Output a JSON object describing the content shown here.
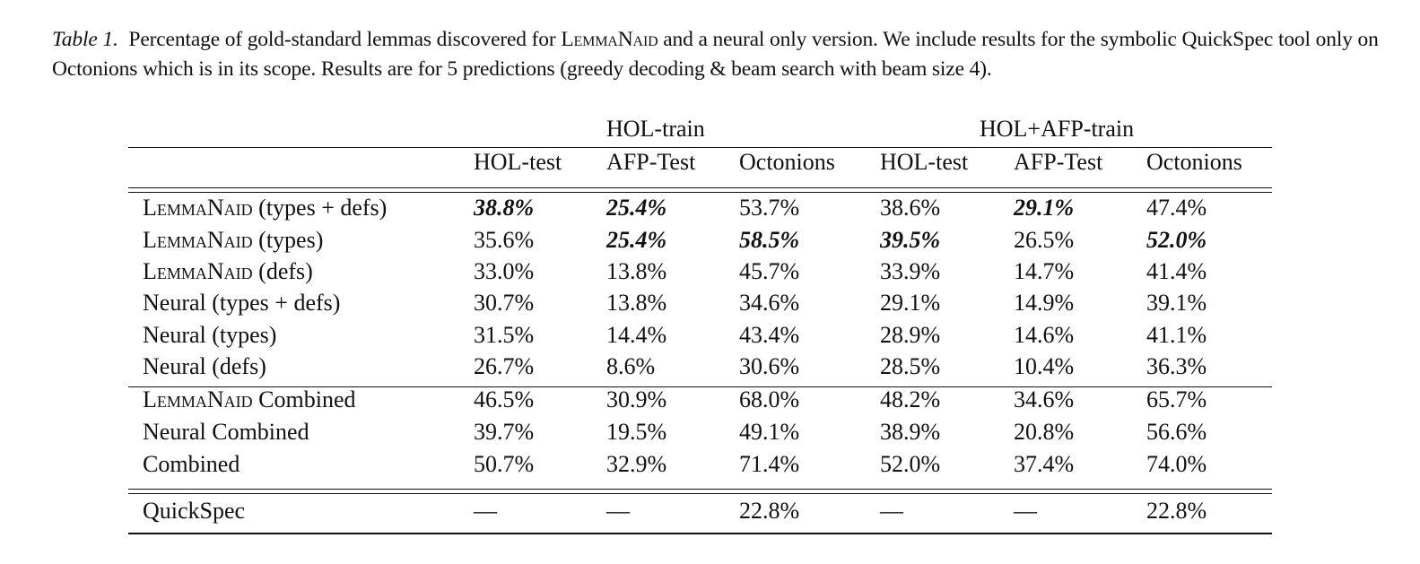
{
  "caption": {
    "label": "Table 1.",
    "text_before": "Percentage of gold-standard lemmas discovered for",
    "system_name": "LemmaNaid",
    "text_after": "and a neural only version. We include results for the symbolic QuickSpec tool only on Octonions which is in its scope. Results are for 5 predictions (greedy decoding & beam search with beam size 4)."
  },
  "table": {
    "groups": [
      {
        "label": "HOL-train"
      },
      {
        "label": "HOL+AFP-train"
      }
    ],
    "columns": [
      "HOL-test",
      "AFP-Test",
      "Octonions",
      "HOL-test",
      "AFP-Test",
      "Octonions"
    ],
    "section1": [
      {
        "name_sc": "LemmaNaid",
        "name_rest": " (types + defs)",
        "values": [
          "38.8%",
          "25.4%",
          "53.7%",
          "38.6%",
          "29.1%",
          "47.4%"
        ],
        "bold": [
          true,
          true,
          false,
          false,
          true,
          false
        ]
      },
      {
        "name_sc": "LemmaNaid",
        "name_rest": " (types)",
        "values": [
          "35.6%",
          "25.4%",
          "58.5%",
          "39.5%",
          "26.5%",
          "52.0%"
        ],
        "bold": [
          false,
          true,
          true,
          true,
          false,
          true
        ]
      },
      {
        "name_sc": "LemmaNaid",
        "name_rest": " (defs)",
        "values": [
          "33.0%",
          "13.8%",
          "45.7%",
          "33.9%",
          "14.7%",
          "41.4%"
        ],
        "bold": [
          false,
          false,
          false,
          false,
          false,
          false
        ]
      },
      {
        "name_sc": "",
        "name_rest": "Neural (types + defs)",
        "values": [
          "30.7%",
          "13.8%",
          "34.6%",
          "29.1%",
          "14.9%",
          "39.1%"
        ],
        "bold": [
          false,
          false,
          false,
          false,
          false,
          false
        ]
      },
      {
        "name_sc": "",
        "name_rest": "Neural (types)",
        "values": [
          "31.5%",
          "14.4%",
          "43.4%",
          "28.9%",
          "14.6%",
          "41.1%"
        ],
        "bold": [
          false,
          false,
          false,
          false,
          false,
          false
        ]
      },
      {
        "name_sc": "",
        "name_rest": "Neural (defs)",
        "values": [
          "26.7%",
          "8.6%",
          "30.6%",
          "28.5%",
          "10.4%",
          "36.3%"
        ],
        "bold": [
          false,
          false,
          false,
          false,
          false,
          false
        ]
      }
    ],
    "section2": [
      {
        "name_sc": "LemmaNaid",
        "name_rest": " Combined",
        "values": [
          "46.5%",
          "30.9%",
          "68.0%",
          "48.2%",
          "34.6%",
          "65.7%"
        ],
        "bold": [
          false,
          false,
          false,
          false,
          false,
          false
        ]
      },
      {
        "name_sc": "",
        "name_rest": "Neural Combined",
        "values": [
          "39.7%",
          "19.5%",
          "49.1%",
          "38.9%",
          "20.8%",
          "56.6%"
        ],
        "bold": [
          false,
          false,
          false,
          false,
          false,
          false
        ]
      },
      {
        "name_sc": "",
        "name_rest": "Combined",
        "values": [
          "50.7%",
          "32.9%",
          "71.4%",
          "52.0%",
          "37.4%",
          "74.0%"
        ],
        "bold": [
          false,
          false,
          false,
          false,
          false,
          false
        ]
      }
    ],
    "section3": [
      {
        "name_sc": "",
        "name_rest": "QuickSpec",
        "values": [
          "—",
          "—",
          "22.8%",
          "—",
          "—",
          "22.8%"
        ],
        "bold": [
          false,
          false,
          false,
          false,
          false,
          false
        ]
      }
    ]
  }
}
